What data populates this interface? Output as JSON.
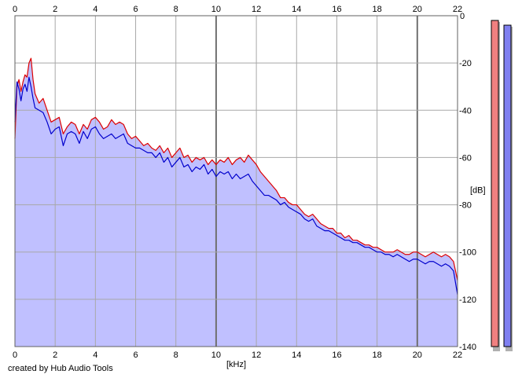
{
  "credit_text": "created by Hub Audio Tools",
  "chart_data": {
    "type": "line",
    "title": "",
    "xlabel": "[kHz]",
    "ylabel": "[dB]",
    "xlim": [
      0,
      22
    ],
    "ylim": [
      -140,
      0
    ],
    "x_ticks": [
      0,
      2,
      4,
      6,
      8,
      10,
      12,
      14,
      16,
      18,
      20,
      22
    ],
    "y_ticks": [
      0,
      -20,
      -40,
      -60,
      -80,
      -100,
      -120,
      -140
    ],
    "grid": true,
    "x_tick_labels_top_and_bottom": true,
    "fill_color": "#c0c0ff",
    "series": [
      {
        "color": "#dd0000",
        "x": [
          0,
          0.1,
          0.2,
          0.3,
          0.4,
          0.5,
          0.6,
          0.7,
          0.8,
          0.9,
          1.0,
          1.2,
          1.4,
          1.6,
          1.8,
          2.0,
          2.2,
          2.4,
          2.6,
          2.8,
          3.0,
          3.2,
          3.4,
          3.6,
          3.8,
          4.0,
          4.2,
          4.4,
          4.6,
          4.8,
          5.0,
          5.2,
          5.4,
          5.6,
          5.8,
          6.0,
          6.2,
          6.4,
          6.6,
          6.8,
          7.0,
          7.2,
          7.4,
          7.6,
          7.8,
          8.0,
          8.2,
          8.4,
          8.6,
          8.8,
          9.0,
          9.2,
          9.4,
          9.6,
          9.8,
          10.0,
          10.2,
          10.4,
          10.6,
          10.8,
          11.0,
          11.2,
          11.4,
          11.6,
          11.8,
          12.0,
          12.2,
          12.4,
          12.6,
          12.8,
          13.0,
          13.2,
          13.4,
          13.6,
          13.8,
          14.0,
          14.2,
          14.4,
          14.6,
          14.8,
          15.0,
          15.2,
          15.4,
          15.6,
          15.8,
          16.0,
          16.2,
          16.4,
          16.6,
          16.8,
          17.0,
          17.2,
          17.4,
          17.6,
          17.8,
          18.0,
          18.2,
          18.4,
          18.6,
          18.8,
          19.0,
          19.2,
          19.4,
          19.6,
          19.8,
          20.0,
          20.2,
          20.4,
          20.6,
          20.8,
          21.0,
          21.2,
          21.4,
          21.6,
          21.8,
          22.0
        ],
        "values": [
          -52,
          -30,
          -27,
          -32,
          -28,
          -25,
          -26,
          -20,
          -18,
          -27,
          -33,
          -37,
          -35,
          -40,
          -45,
          -44,
          -43,
          -50,
          -47,
          -45,
          -46,
          -50,
          -46,
          -48,
          -44,
          -43,
          -45,
          -48,
          -47,
          -44,
          -46,
          -45,
          -46,
          -50,
          -52,
          -51,
          -53,
          -55,
          -54,
          -56,
          -57,
          -55,
          -58,
          -56,
          -60,
          -58,
          -56,
          -60,
          -59,
          -62,
          -60,
          -61,
          -60,
          -63,
          -61,
          -63,
          -61,
          -62,
          -60,
          -63,
          -61,
          -60,
          -62,
          -59,
          -61,
          -63,
          -66,
          -68,
          -70,
          -72,
          -74,
          -77,
          -77,
          -79,
          -80,
          -80,
          -82,
          -84,
          -85,
          -84,
          -86,
          -88,
          -89,
          -90,
          -90,
          -92,
          -92,
          -94,
          -93,
          -95,
          -95,
          -96,
          -97,
          -97,
          -98,
          -98,
          -99,
          -100,
          -100,
          -100,
          -99,
          -100,
          -101,
          -101,
          -100,
          -100,
          -101,
          -102,
          -101,
          -100,
          -101,
          -102,
          -101,
          -102,
          -104,
          -112
        ]
      },
      {
        "color": "#0000cc",
        "x": [
          0,
          0.1,
          0.2,
          0.3,
          0.4,
          0.5,
          0.6,
          0.7,
          0.8,
          0.9,
          1.0,
          1.2,
          1.4,
          1.6,
          1.8,
          2.0,
          2.2,
          2.4,
          2.6,
          2.8,
          3.0,
          3.2,
          3.4,
          3.6,
          3.8,
          4.0,
          4.2,
          4.4,
          4.6,
          4.8,
          5.0,
          5.2,
          5.4,
          5.6,
          5.8,
          6.0,
          6.2,
          6.4,
          6.6,
          6.8,
          7.0,
          7.2,
          7.4,
          7.6,
          7.8,
          8.0,
          8.2,
          8.4,
          8.6,
          8.8,
          9.0,
          9.2,
          9.4,
          9.6,
          9.8,
          10.0,
          10.2,
          10.4,
          10.6,
          10.8,
          11.0,
          11.2,
          11.4,
          11.6,
          11.8,
          12.0,
          12.2,
          12.4,
          12.6,
          12.8,
          13.0,
          13.2,
          13.4,
          13.6,
          13.8,
          14.0,
          14.2,
          14.4,
          14.6,
          14.8,
          15.0,
          15.2,
          15.4,
          15.6,
          15.8,
          16.0,
          16.2,
          16.4,
          16.6,
          16.8,
          17.0,
          17.2,
          17.4,
          17.6,
          17.8,
          18.0,
          18.2,
          18.4,
          18.6,
          18.8,
          19.0,
          19.2,
          19.4,
          19.6,
          19.8,
          20.0,
          20.2,
          20.4,
          20.6,
          20.8,
          21.0,
          21.2,
          21.4,
          21.6,
          21.8,
          22.0
        ],
        "values": [
          -45,
          -28,
          -31,
          -36,
          -31,
          -29,
          -32,
          -26,
          -30,
          -35,
          -39,
          -40,
          -41,
          -45,
          -50,
          -48,
          -47,
          -55,
          -50,
          -49,
          -50,
          -54,
          -49,
          -52,
          -48,
          -47,
          -50,
          -52,
          -51,
          -50,
          -52,
          -51,
          -50,
          -54,
          -55,
          -56,
          -56,
          -57,
          -58,
          -58,
          -60,
          -58,
          -62,
          -60,
          -64,
          -62,
          -60,
          -64,
          -63,
          -66,
          -64,
          -65,
          -63,
          -67,
          -65,
          -68,
          -66,
          -67,
          -66,
          -69,
          -67,
          -69,
          -68,
          -67,
          -70,
          -72,
          -74,
          -76,
          -76,
          -77,
          -78,
          -80,
          -79,
          -81,
          -82,
          -83,
          -84,
          -86,
          -87,
          -86,
          -89,
          -90,
          -91,
          -91,
          -92,
          -93,
          -94,
          -95,
          -95,
          -96,
          -96,
          -97,
          -98,
          -98,
          -99,
          -100,
          -100,
          -101,
          -101,
          -102,
          -101,
          -102,
          -103,
          -104,
          -103,
          -103,
          -104,
          -105,
          -104,
          -104,
          -105,
          -106,
          -105,
          -106,
          -108,
          -118
        ]
      }
    ],
    "level_meters": [
      {
        "color": "#f08080",
        "value_db": -2
      },
      {
        "color": "#8080f0",
        "value_db": -4
      }
    ]
  }
}
